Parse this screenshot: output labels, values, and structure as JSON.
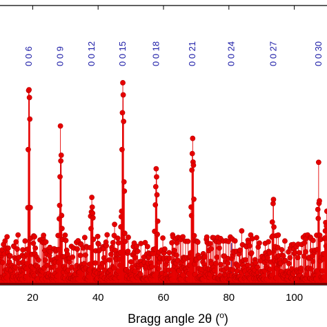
{
  "chart_data": {
    "type": "scatter",
    "title": "",
    "xlabel": "Bragg angle 2θ",
    "xlabel_unit_sup": "o",
    "ylabel": "",
    "xlim": [
      10,
      110
    ],
    "ylim": [
      0,
      100
    ],
    "x_ticks": [
      20,
      40,
      60,
      80,
      100
    ],
    "x_tick_labels": [
      "20",
      "40",
      "60",
      "80",
      "100"
    ],
    "grid": false,
    "colors": {
      "marker": "#e60000",
      "marker_edge": "#b80000",
      "reflection_line": "#2222aa",
      "reflection_label": "#1a1aa6",
      "axis": "#000000",
      "baseline": "#7a0000"
    },
    "reflections": [
      {
        "label": "0 0 6",
        "x": 18.9,
        "intensity": 66
      },
      {
        "label": "0 0 9",
        "x": 28.5,
        "intensity": 43
      },
      {
        "label": "0 0 12",
        "x": 38.1,
        "intensity": 28
      },
      {
        "label": "0 0 15",
        "x": 47.6,
        "intensity": 66
      },
      {
        "label": "0 0 18",
        "x": 57.8,
        "intensity": 37
      },
      {
        "label": "0 0 21",
        "x": 68.9,
        "intensity": 45
      },
      {
        "label": "0 0 24",
        "x": 80.8,
        "intensity": 15
      },
      {
        "label": "0 0 27",
        "x": 93.6,
        "intensity": 19
      },
      {
        "label": "0 0 30",
        "x": 107.5,
        "intensity": 28
      }
    ],
    "peaks": [
      {
        "x": 18.9,
        "height": 66,
        "width": 0.35
      },
      {
        "x": 28.5,
        "height": 43,
        "width": 0.35
      },
      {
        "x": 38.1,
        "height": 28,
        "width": 0.35
      },
      {
        "x": 47.6,
        "height": 66,
        "width": 0.4
      },
      {
        "x": 57.8,
        "height": 37,
        "width": 0.35
      },
      {
        "x": 68.9,
        "height": 45,
        "width": 0.4
      },
      {
        "x": 93.6,
        "height": 19,
        "width": 0.35
      },
      {
        "x": 107.5,
        "height": 28,
        "width": 0.35
      },
      {
        "x": 110.0,
        "height": 20,
        "width": 0.35
      }
    ],
    "background_level": 16
  }
}
